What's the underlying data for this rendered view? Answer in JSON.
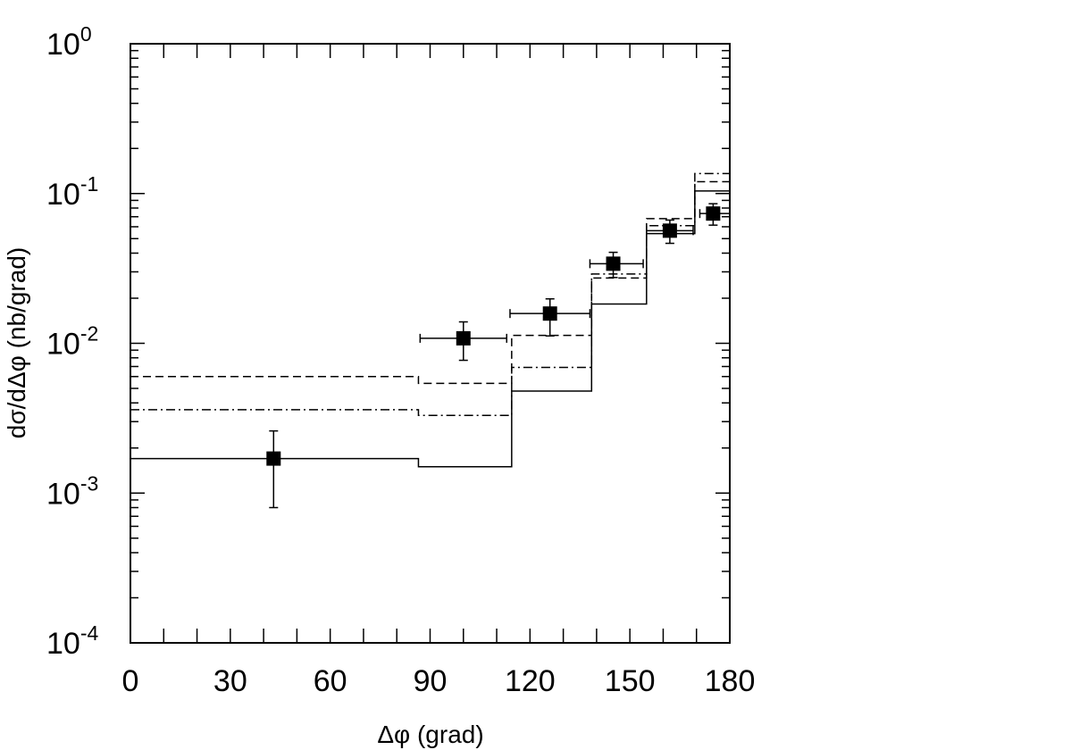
{
  "chart_data": {
    "type": "scatter",
    "xlabel": "Δφ (grad)",
    "ylabel": "dσ/dΔφ (nb/grad)",
    "xlim": [
      0,
      180
    ],
    "ylim": [
      0.0001,
      1
    ],
    "yscale": "log",
    "x_ticks": [
      {
        "value": 0,
        "label": "0"
      },
      {
        "value": 30,
        "label": "30"
      },
      {
        "value": 60,
        "label": "60"
      },
      {
        "value": 90,
        "label": "90"
      },
      {
        "value": 120,
        "label": "120"
      },
      {
        "value": 150,
        "label": "150"
      },
      {
        "value": 180,
        "label": "180"
      }
    ],
    "y_ticks": [
      {
        "value": 1,
        "base": "10",
        "exp": "0"
      },
      {
        "value": 0.1,
        "base": "10",
        "exp": "-1"
      },
      {
        "value": 0.01,
        "base": "10",
        "exp": "-2"
      },
      {
        "value": 0.001,
        "base": "10",
        "exp": "-3"
      },
      {
        "value": 0.0001,
        "base": "10",
        "exp": "-4"
      }
    ],
    "grid": false,
    "data_points": [
      {
        "x": 43,
        "y": 0.0017,
        "xerr": null,
        "ylow": 0.0008,
        "yhigh": 0.0026
      },
      {
        "x": 100,
        "y": 0.0108,
        "xerr": [
          87,
          113
        ],
        "ylow": 0.0077,
        "yhigh": 0.0139
      },
      {
        "x": 126,
        "y": 0.0158,
        "xerr": [
          114,
          138
        ],
        "ylow": 0.0112,
        "yhigh": 0.0198
      },
      {
        "x": 145,
        "y": 0.034,
        "xerr": [
          138,
          154
        ],
        "ylow": 0.0275,
        "yhigh": 0.0405
      },
      {
        "x": 162,
        "y": 0.0565,
        "xerr": [
          155,
          169
        ],
        "ylow": 0.0465,
        "yhigh": 0.0665
      },
      {
        "x": 175,
        "y": 0.0735,
        "xerr": [
          171,
          180
        ],
        "ylow": 0.0615,
        "yhigh": 0.0855
      }
    ],
    "series": [
      {
        "style": "solid",
        "edges": [
          0,
          86.5,
          114.5,
          138.5,
          155,
          169.5,
          180
        ],
        "values": [
          0.0017,
          0.0015,
          0.0048,
          0.0183,
          0.054,
          0.104
        ]
      },
      {
        "style": "dashed",
        "edges": [
          0,
          86.5,
          114.5,
          138.5,
          155,
          169.5,
          180
        ],
        "values": [
          0.006,
          0.0054,
          0.0113,
          0.0273,
          0.068,
          0.12
        ]
      },
      {
        "style": "dash-dot",
        "edges": [
          0,
          86.5,
          114.5,
          138.5,
          155,
          169.5,
          180
        ],
        "values": [
          0.0036,
          0.0033,
          0.0069,
          0.029,
          0.061,
          0.136
        ]
      }
    ]
  }
}
